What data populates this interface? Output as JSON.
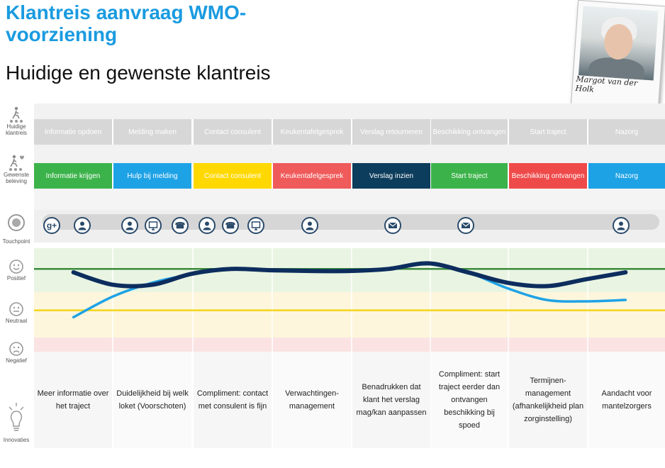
{
  "header": {
    "title": "Klantreis aanvraag WMO-voorziening",
    "subtitle": "Huidige en gewenste klantreis",
    "persona_name": "Margot van der Holk"
  },
  "row_labels": {
    "huidige": "Huidige klantreis",
    "gewenste": "Gewenste beleving",
    "touchpoint": "Touchpoint",
    "positief": "Positief",
    "neutraal": "Neutraal",
    "negatief": "Negatief",
    "innovaties": "Innovaties"
  },
  "current_steps": [
    "Informatie opdoen",
    "Melding maken",
    "Contact consulent",
    "Keukentafelgesprek",
    "Verslag retourneren",
    "Beschikking ontvangen",
    "Start traject",
    "Nazorg"
  ],
  "desired_steps": [
    {
      "label": "Informatie krijgen",
      "color": "#3cb34a"
    },
    {
      "label": "Hulp bij melding",
      "color": "#1ea2e6"
    },
    {
      "label": "Contact consulent",
      "color": "#ffd800"
    },
    {
      "label": "Keukentafelgesprek",
      "color": "#ef5a5a"
    },
    {
      "label": "Verslag inzien",
      "color": "#0d3d5c"
    },
    {
      "label": "Start traject",
      "color": "#3cb34a"
    },
    {
      "label": "Beschikking ontvangen",
      "color": "#ef4a4a"
    },
    {
      "label": "Nazorg",
      "color": "#1ea2e6"
    }
  ],
  "touchpoints": [
    {
      "icon": "google-plus-icon",
      "glyph": "g+"
    },
    {
      "icon": "person-icon"
    },
    {
      "icon": "person-icon"
    },
    {
      "icon": "monitor-icon"
    },
    {
      "icon": "phone-icon",
      "glyph": "☎"
    },
    {
      "icon": "person-icon"
    },
    {
      "icon": "phone-icon",
      "glyph": "☎"
    },
    {
      "icon": "monitor-icon"
    },
    {
      "icon": "person-icon"
    },
    {
      "icon": "envelope-icon"
    },
    {
      "icon": "envelope-icon"
    },
    {
      "icon": "person-icon"
    }
  ],
  "innovations": [
    "Meer informatie over het traject",
    "Duidelijkheid bij welk loket (Voorschoten)",
    "Compliment: contact met consulent is fijn",
    "Verwachtingen-management",
    "Benadrukken dat klant het verslag mag/kan aanpassen",
    "Compliment: start traject eerder dan ontvangen beschikking bij spoed",
    "Termijnen-management (afhankelijkheid plan zorginstelling)",
    "Aandacht voor mantelzorgers"
  ],
  "chart_data": {
    "type": "line",
    "x": [
      0.5,
      1.0,
      1.5,
      2.0,
      2.5,
      3.0,
      3.5,
      4.0,
      4.5,
      5.0,
      5.5,
      6.0,
      6.5,
      7.0,
      7.5
    ],
    "series": [
      {
        "key": "current",
        "color": "#1ea2e6",
        "values": [
          -0.35,
          -0.05,
          0.15,
          0.27,
          0.34,
          0.33,
          0.32,
          0.32,
          0.35,
          0.42,
          0.3,
          0.07,
          -0.1,
          -0.12,
          -0.1
        ]
      },
      {
        "key": "desired",
        "color": "#0d2d5e",
        "values": [
          0.3,
          0.12,
          0.12,
          0.28,
          0.35,
          0.33,
          0.32,
          0.32,
          0.35,
          0.43,
          0.3,
          0.15,
          0.1,
          0.2,
          0.3
        ]
      }
    ],
    "reference_lines": [
      {
        "level": "positief",
        "value": 0.35,
        "color": "#3c8a3c"
      },
      {
        "level": "neutraal",
        "value": -0.25,
        "color": "#f4d418"
      }
    ],
    "ylim": [
      -0.85,
      0.65
    ],
    "colors": {
      "positive_zone": "#e9f5e2",
      "neutral_zone": "#fdf6dc",
      "negative_zone": "#fbe3e3"
    }
  }
}
